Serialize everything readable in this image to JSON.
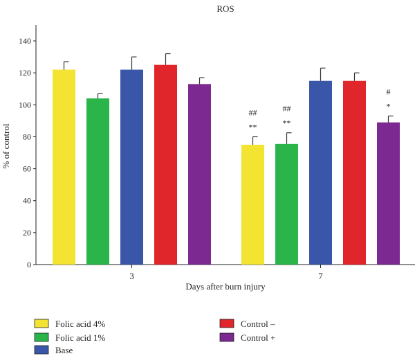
{
  "chart_data": {
    "type": "bar",
    "title": "ROS",
    "xlabel": "Days after burn injury",
    "ylabel": "% of control",
    "ylim": [
      0,
      150
    ],
    "yticks": [
      0,
      20,
      40,
      60,
      80,
      100,
      120,
      140
    ],
    "grid": false,
    "legend_position": "bottom",
    "categories": [
      "3",
      "7"
    ],
    "series": [
      {
        "name": "Folic acid 4%",
        "color": "#f2e431",
        "values": [
          122,
          75
        ],
        "errors": [
          5,
          5
        ],
        "annotations": [
          "",
          "**"
        ],
        "annotations_top": [
          "",
          "##"
        ]
      },
      {
        "name": "Folic acid 1%",
        "color": "#2bb44a",
        "values": [
          104,
          75.5
        ],
        "errors": [
          3,
          7
        ],
        "annotations": [
          "",
          "**"
        ],
        "annotations_top": [
          "",
          "##"
        ]
      },
      {
        "name": "Base",
        "color": "#3a56a8",
        "values": [
          122,
          115
        ],
        "errors": [
          8,
          8
        ],
        "annotations": [
          "",
          ""
        ],
        "annotations_top": [
          "",
          ""
        ]
      },
      {
        "name": "Control –",
        "color": "#e0262b",
        "values": [
          125,
          115
        ],
        "errors": [
          7,
          5
        ],
        "annotations": [
          "",
          ""
        ],
        "annotations_top": [
          "",
          ""
        ]
      },
      {
        "name": "Control +",
        "color": "#7c2a91",
        "values": [
          113,
          89
        ],
        "errors": [
          4,
          4
        ],
        "annotations": [
          "",
          "*"
        ],
        "annotations_top": [
          "",
          "#"
        ]
      }
    ]
  }
}
